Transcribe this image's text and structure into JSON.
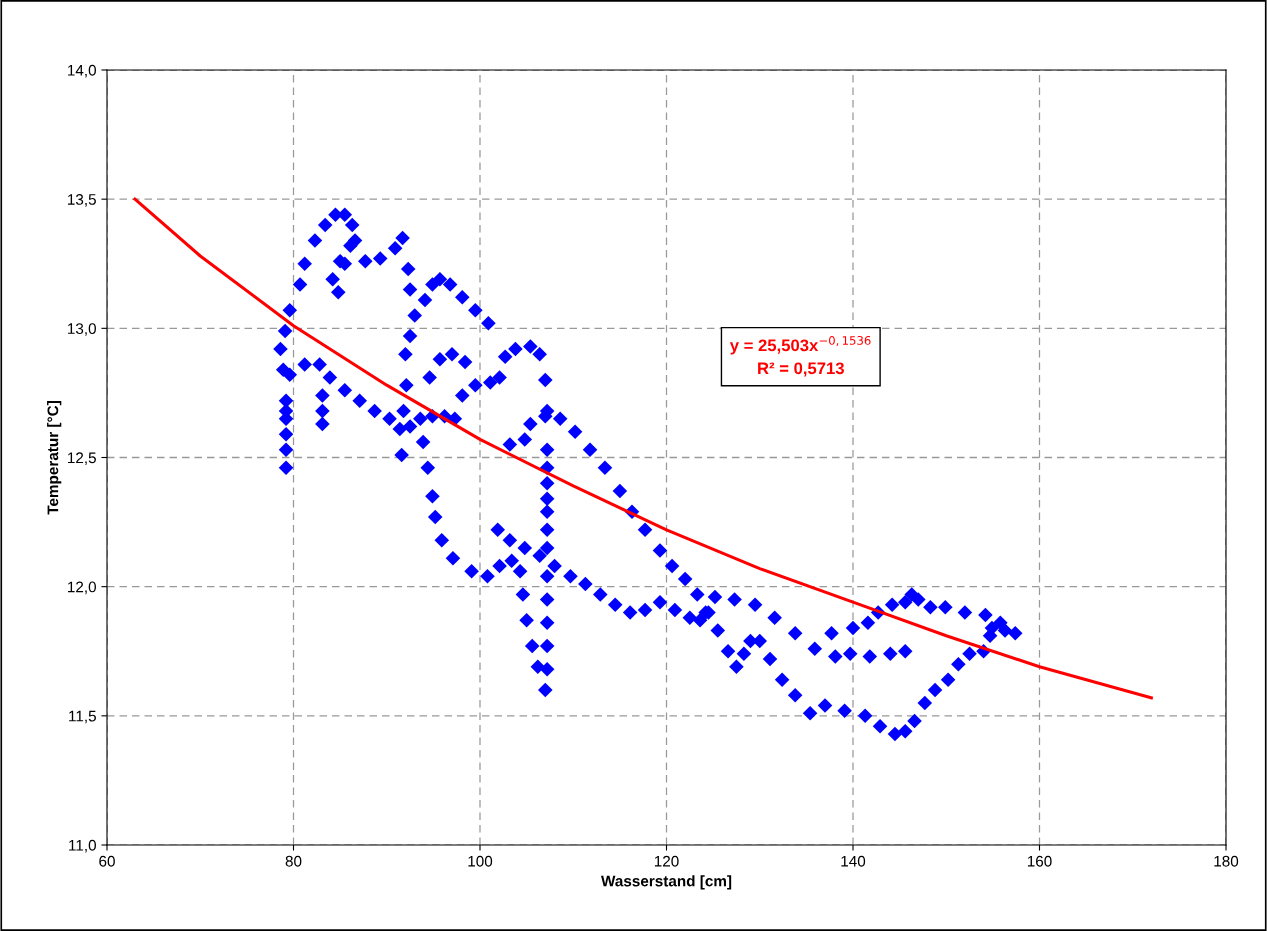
{
  "chart_data": {
    "type": "scatter",
    "xlabel": "Wasserstand [cm]",
    "ylabel": "Temperatur [°C]",
    "xlim": [
      60,
      180
    ],
    "xticks": [
      60,
      80,
      100,
      120,
      140,
      160,
      180
    ],
    "ylim": [
      11,
      14
    ],
    "yticks": [
      {
        "value": 11,
        "label": "11,0"
      },
      {
        "value": 11.5,
        "label": "11,5"
      },
      {
        "value": 12,
        "label": "12,0"
      },
      {
        "value": 12.5,
        "label": "12,5"
      },
      {
        "value": 13,
        "label": "13,0"
      },
      {
        "value": 13.5,
        "label": "13,5"
      },
      {
        "value": 14,
        "label": "14,0"
      }
    ],
    "grid": true,
    "marker": "diamond",
    "annotations": [
      "y = 25,503x$^{−0,1536}$\nR² = 0,5713"
    ],
    "series": [
      {
        "color": "#0000ff",
        "x": [
          78.6,
          79.1,
          79.6,
          80.7,
          81.2,
          82.3,
          83.4,
          84.5,
          85.5,
          86.3,
          86.1,
          85.5,
          84.8,
          84.2,
          85.0,
          86.6,
          87.7,
          89.3,
          90.9,
          91.7,
          92.3,
          92.5,
          78.9,
          79.6,
          81.2,
          82.8,
          83.9,
          85.5,
          87.1,
          88.7,
          90.3,
          91.4,
          92.5,
          93.6,
          94.9,
          96.2,
          97.3,
          79.2,
          79.2,
          79.2,
          79.2,
          79.2,
          79.2,
          83.1,
          83.1,
          83.1,
          94.6,
          95.7,
          97.0,
          98.4,
          98.1,
          99.5,
          101.1,
          102.1,
          102.7,
          103.8,
          105.4,
          106.4,
          107.0,
          107.2,
          104.8,
          103.2,
          105.4,
          107.0,
          108.6,
          110.2,
          111.8,
          113.4,
          115.0,
          116.3,
          117.7,
          119.3,
          120.6,
          122.0,
          123.3,
          124.5,
          125.5,
          126.6,
          127.5,
          128.3,
          129.0,
          130.0,
          131.1,
          132.4,
          133.8,
          135.4,
          137.0,
          139.1,
          141.3,
          142.9,
          144.5,
          145.6,
          146.6,
          147.7,
          148.8,
          150.2,
          151.3,
          152.5,
          154.0,
          154.7,
          154.9,
          156.3,
          157.4,
          155.8,
          154.2,
          152.0,
          149.9,
          148.3,
          147.0,
          146.3,
          145.6,
          144.2,
          142.7,
          141.6,
          140.0,
          137.7,
          139.7,
          141.8,
          144.0,
          145.6,
          125.2,
          127.3,
          129.5,
          131.6,
          133.8,
          135.9,
          138.1,
          101.9,
          103.2,
          104.8,
          106.4,
          108.0,
          109.7,
          111.3,
          112.9,
          114.5,
          116.1,
          117.7,
          119.3,
          120.9,
          122.5,
          123.6,
          124.2,
          93.9,
          94.4,
          94.9,
          95.2,
          95.9,
          97.1,
          99.1,
          100.8,
          102.1,
          103.4,
          104.3,
          104.6,
          105.0,
          105.6,
          106.2,
          107.0,
          107.2,
          107.2,
          107.2,
          107.2,
          107.2,
          107.2,
          107.2,
          107.2,
          107.2,
          107.2,
          107.2,
          107.2,
          92.0,
          92.5,
          93.0,
          94.1,
          94.9,
          95.7,
          96.8,
          98.1,
          99.5,
          100.9,
          92.1,
          91.8,
          91.6
        ],
        "values": [
          12.92,
          12.99,
          13.07,
          13.17,
          13.25,
          13.34,
          13.4,
          13.44,
          13.44,
          13.4,
          13.32,
          13.25,
          13.14,
          13.19,
          13.26,
          13.34,
          13.26,
          13.27,
          13.31,
          13.35,
          13.23,
          13.15,
          12.84,
          12.82,
          12.86,
          12.86,
          12.81,
          12.76,
          12.72,
          12.68,
          12.65,
          12.61,
          12.62,
          12.65,
          12.66,
          12.66,
          12.65,
          12.72,
          12.68,
          12.65,
          12.59,
          12.53,
          12.46,
          12.74,
          12.68,
          12.63,
          12.81,
          12.88,
          12.9,
          12.87,
          12.74,
          12.78,
          12.79,
          12.81,
          12.89,
          12.92,
          12.93,
          12.9,
          12.8,
          12.68,
          12.57,
          12.55,
          12.63,
          12.66,
          12.65,
          12.6,
          12.53,
          12.46,
          12.37,
          12.29,
          12.22,
          12.14,
          12.08,
          12.03,
          11.97,
          11.9,
          11.83,
          11.75,
          11.69,
          11.74,
          11.79,
          11.79,
          11.72,
          11.64,
          11.58,
          11.51,
          11.54,
          11.52,
          11.5,
          11.46,
          11.43,
          11.44,
          11.48,
          11.55,
          11.6,
          11.64,
          11.7,
          11.74,
          11.75,
          11.81,
          11.84,
          11.83,
          11.82,
          11.86,
          11.89,
          11.9,
          11.92,
          11.92,
          11.95,
          11.97,
          11.94,
          11.93,
          11.9,
          11.86,
          11.84,
          11.82,
          11.74,
          11.73,
          11.74,
          11.75,
          11.96,
          11.95,
          11.93,
          11.88,
          11.82,
          11.76,
          11.73,
          12.22,
          12.18,
          12.15,
          12.12,
          12.08,
          12.04,
          12.01,
          11.97,
          11.93,
          11.9,
          11.91,
          11.94,
          11.91,
          11.88,
          11.87,
          11.9,
          12.56,
          12.46,
          12.35,
          12.27,
          12.18,
          12.11,
          12.06,
          12.04,
          12.08,
          12.1,
          12.06,
          11.97,
          11.87,
          11.77,
          11.69,
          11.6,
          12.53,
          12.46,
          12.4,
          12.34,
          12.29,
          12.22,
          12.15,
          12.04,
          11.95,
          11.86,
          11.77,
          11.68,
          12.9,
          12.97,
          13.05,
          13.11,
          13.17,
          13.19,
          13.17,
          13.12,
          13.07,
          13.02,
          12.78,
          12.68,
          12.51
        ]
      },
      {
        "type": "line",
        "color": "#ff0000",
        "marker": "none",
        "line_style": "solid",
        "x": [
          63,
          70,
          80,
          90,
          100,
          110,
          120,
          130,
          140,
          150,
          160,
          172
        ],
        "values": [
          13.5,
          13.28,
          13.01,
          12.78,
          12.57,
          12.39,
          12.22,
          12.07,
          11.94,
          11.81,
          11.69,
          11.57
        ]
      }
    ]
  }
}
